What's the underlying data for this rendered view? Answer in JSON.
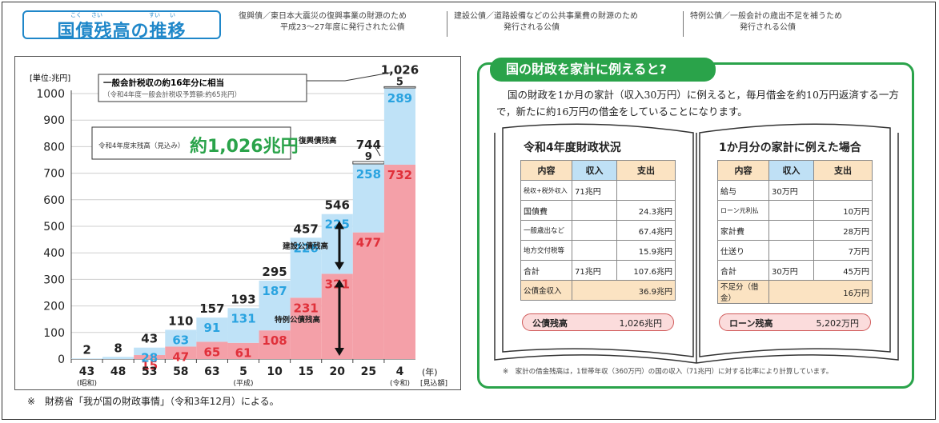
{
  "header": {
    "title": "国債残高の推移",
    "title_ruby": [
      "こく",
      "さい",
      "すい",
      "い"
    ]
  },
  "definitions": [
    {
      "term": "復興債",
      "line1": "／東日本大震災の復興事業の財源のため",
      "line2": "平成23～27年度に発行された公債"
    },
    {
      "term": "建設公債",
      "line1": "／道路設備などの公共事業費の財源のため",
      "line2": "発行される公債"
    },
    {
      "term": "特例公債",
      "line1": "／一般会計の歳出不足を補うため",
      "line2": "発行される公債"
    }
  ],
  "chart_data": {
    "type": "bar",
    "unit_label": "[単位:兆円]",
    "categories": [
      "43",
      "48",
      "53",
      "58",
      "63",
      "5",
      "10",
      "15",
      "20",
      "25",
      "4"
    ],
    "era_labels": {
      "0": "(昭和)",
      "5": "(平成)",
      "10": "(令和)"
    },
    "x_suffix": "(年)",
    "x_suffix2": "[見込額]",
    "ylim": [
      0,
      1000
    ],
    "yticks": [
      0,
      100,
      200,
      300,
      400,
      500,
      600,
      700,
      800,
      900,
      1000
    ],
    "series": [
      {
        "name": "特例公債残高",
        "color": "#f4a0a8",
        "label_color": "#e0303a",
        "values": [
          0,
          0,
          15,
          47,
          65,
          61,
          108,
          231,
          321,
          477,
          732
        ]
      },
      {
        "name": "建設公債残高",
        "color": "#bfe2f7",
        "label_color": "#29a3e0",
        "values": [
          2,
          8,
          28,
          63,
          91,
          131,
          187,
          226,
          225,
          258,
          289
        ]
      },
      {
        "name": "復興債残高",
        "color": "#ffffff",
        "label_color": "#222222",
        "values": [
          0,
          0,
          0,
          0,
          0,
          0,
          0,
          0,
          0,
          9,
          5
        ]
      }
    ],
    "totals": [
      2,
      8,
      43,
      110,
      157,
      193,
      295,
      457,
      546,
      744,
      1026
    ],
    "total_labels": [
      "2",
      "8",
      "43",
      "110",
      "157",
      "193",
      "295",
      "457",
      "546",
      "744",
      "1,026"
    ],
    "annotations": {
      "fukko": "復興債残高",
      "kensetsu": "建設公債残高",
      "tokurei": "特例公債残高",
      "callout_main": "一般会計税収の約16年分に相当",
      "callout_sub": "（令和4年度一般会計税収予算額:約65兆円）",
      "total_prefix": "令和4年度末残高（見込み）",
      "total_value": "約1,026兆円"
    }
  },
  "footnote": "※　財務省「我が国の財政事情」（令和3年12月）による。",
  "panel": {
    "title": "国の財政を家計に例えると?",
    "title_ruby": [
      "ざい",
      "せい"
    ],
    "text": "国の財政を1か月の家計（収入30万円）に例えると，毎月借金を約10万円返済する一方で，新たに約16万円の借金をしていることになります。",
    "left_book": {
      "title": "令和4年度財政状況",
      "headers": [
        "内容",
        "収入",
        "支出"
      ],
      "rows": [
        [
          "税収+税外収入",
          "71兆円",
          ""
        ],
        [
          "国債費",
          "",
          "24.3兆円"
        ],
        [
          "一般歳出など",
          "",
          "67.4兆円"
        ],
        [
          "地方交付税等",
          "",
          "15.9兆円"
        ],
        [
          "合計",
          "71兆円",
          "107.6兆円"
        ]
      ],
      "deficit_label": "公債金収入",
      "deficit_value": "36.9兆円",
      "balance_label": "公債残高",
      "balance_value": "1,026兆円"
    },
    "right_book": {
      "title": "1か月分の家計に例えた場合",
      "headers": [
        "内容",
        "収入",
        "支出"
      ],
      "rows": [
        [
          "給与",
          "30万円",
          ""
        ],
        [
          "ローン元利払",
          "",
          "10万円"
        ],
        [
          "家計費",
          "",
          "28万円"
        ],
        [
          "仕送り",
          "",
          "7万円"
        ],
        [
          "合計",
          "30万円",
          "45万円"
        ]
      ],
      "deficit_label": "不足分（借金）",
      "deficit_value": "16万円",
      "balance_label": "ローン残高",
      "balance_value": "5,202万円"
    },
    "note": "※　家計の借金残高は，1世帯年収（360万円）の国の収入（71兆円）に対する比率により計算しています。"
  }
}
